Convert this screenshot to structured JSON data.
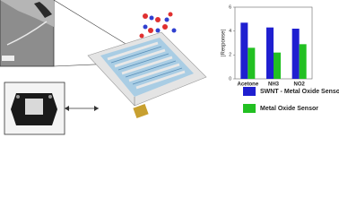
{
  "chart_data": {
    "type": "bar",
    "y_label": "|Response|",
    "categories": [
      "Acetone",
      "NH3",
      "NO2"
    ],
    "series": [
      {
        "name": "SWNT - Metal Oxide Sensor",
        "color": "#1f1fd0",
        "values": [
          4.7,
          4.3,
          4.2
        ]
      },
      {
        "name": "Metal Oxide Sensor",
        "color": "#22c022",
        "values": [
          2.6,
          2.2,
          2.9
        ]
      }
    ],
    "ylim": [
      0,
      6
    ],
    "yticks": [
      0,
      2,
      4,
      6
    ]
  }
}
